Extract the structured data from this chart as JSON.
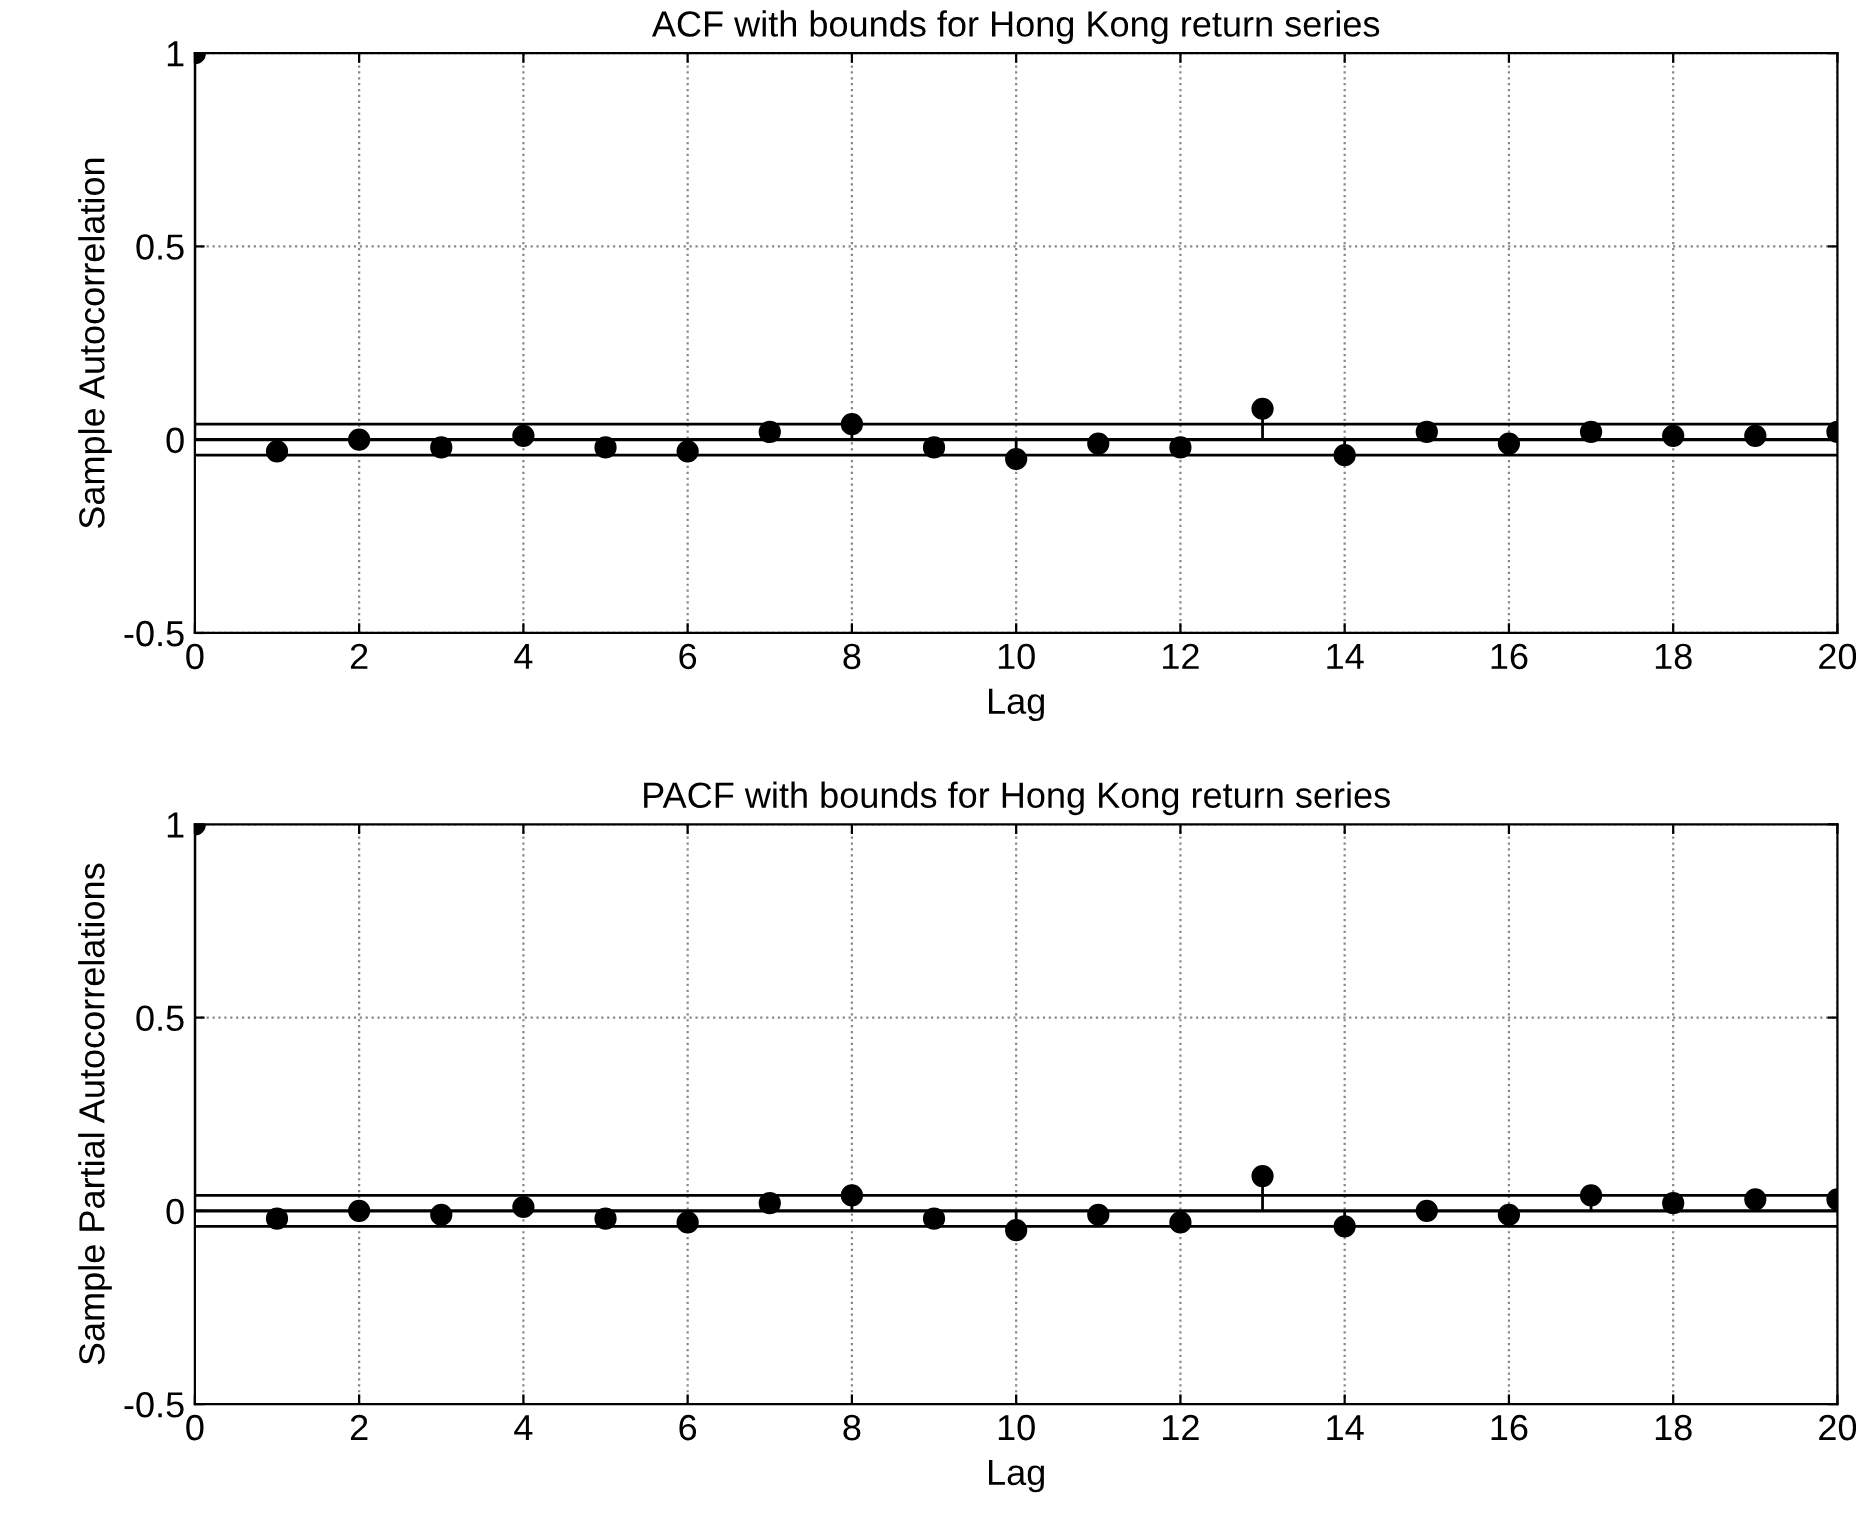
{
  "chart_data": [
    {
      "type": "lollipop",
      "title": "ACF with bounds for Hong Kong return series",
      "xlabel": "Lag",
      "ylabel": "Sample Autocorrelation",
      "x": [
        0,
        1,
        2,
        3,
        4,
        5,
        6,
        7,
        8,
        9,
        10,
        11,
        12,
        13,
        14,
        15,
        16,
        17,
        18,
        19,
        20
      ],
      "series": [
        {
          "color": "#000000",
          "values": [
            1,
            -0.03,
            0,
            -0.02,
            0.01,
            -0.02,
            -0.03,
            0.02,
            0.04,
            -0.02,
            -0.05,
            -0.01,
            -0.02,
            0.08,
            -0.04,
            0.02,
            -0.01,
            0.02,
            0.01,
            0.01,
            0.02
          ]
        }
      ],
      "xlim": [
        0,
        20
      ],
      "xticks": [
        0,
        2,
        4,
        6,
        8,
        10,
        12,
        14,
        16,
        18,
        20
      ],
      "ylim": [
        -0.5,
        1
      ],
      "yticks": [
        -0.5,
        0,
        0.5,
        1
      ],
      "ref_lines": [
        {
          "axis": "y",
          "value": 0.04,
          "color": "#000000"
        },
        {
          "axis": "y",
          "value": -0.04,
          "color": "#000000"
        }
      ],
      "grid": true,
      "marker": "circle",
      "legend": false
    },
    {
      "type": "lollipop",
      "title": "PACF with bounds for Hong Kong return series",
      "xlabel": "Lag",
      "ylabel": "Sample Partial Autocorrelations",
      "x": [
        0,
        1,
        2,
        3,
        4,
        5,
        6,
        7,
        8,
        9,
        10,
        11,
        12,
        13,
        14,
        15,
        16,
        17,
        18,
        19,
        20
      ],
      "series": [
        {
          "color": "#000000",
          "values": [
            1,
            -0.02,
            0,
            -0.01,
            0.01,
            -0.02,
            -0.03,
            0.02,
            0.04,
            -0.02,
            -0.05,
            -0.01,
            -0.03,
            0.09,
            -0.04,
            0,
            -0.01,
            0.04,
            0.02,
            0.03,
            0.03
          ]
        }
      ],
      "xlim": [
        0,
        20
      ],
      "xticks": [
        0,
        2,
        4,
        6,
        8,
        10,
        12,
        14,
        16,
        18,
        20
      ],
      "ylim": [
        -0.5,
        1
      ],
      "yticks": [
        -0.5,
        0,
        0.5,
        1
      ],
      "ref_lines": [
        {
          "axis": "y",
          "value": 0.04,
          "color": "#000000"
        },
        {
          "axis": "y",
          "value": -0.04,
          "color": "#000000"
        }
      ],
      "grid": true,
      "marker": "circle",
      "legend": false
    }
  ]
}
